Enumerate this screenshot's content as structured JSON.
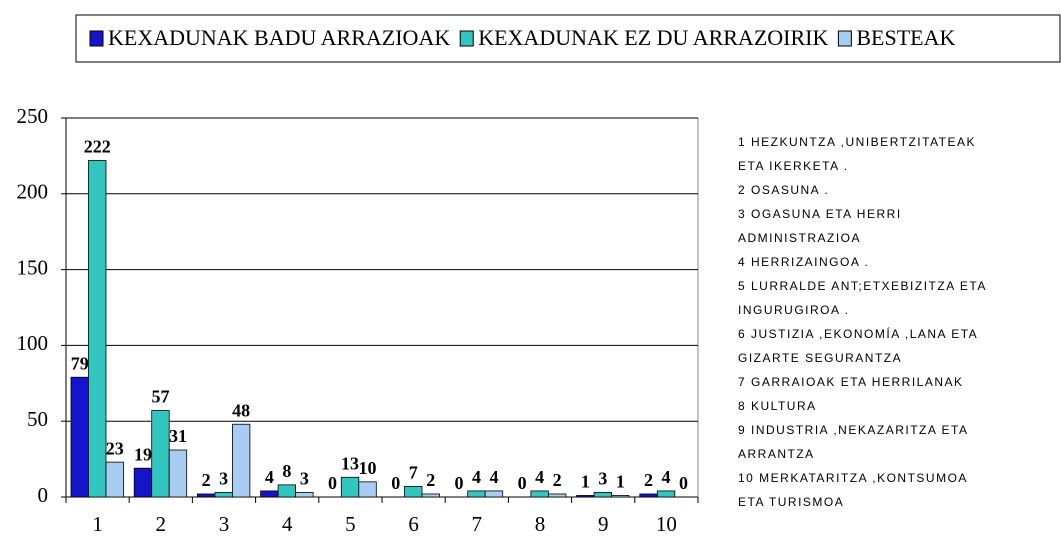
{
  "chart_data": {
    "type": "bar",
    "categories": [
      "1",
      "2",
      "3",
      "4",
      "5",
      "6",
      "7",
      "8",
      "9",
      "10"
    ],
    "series": [
      {
        "name": "KEXADUNAK BADU ARRAZIOAK",
        "color": "#1414c8",
        "values": [
          79,
          19,
          2,
          4,
          0,
          0,
          0,
          0,
          1,
          2
        ]
      },
      {
        "name": "KEXADUNAK EZ DU ARRAZOIRIK",
        "color": "#33c6c0",
        "values": [
          222,
          57,
          3,
          8,
          13,
          7,
          4,
          4,
          3,
          4
        ]
      },
      {
        "name": "BESTEAK",
        "color": "#a8ccf2",
        "values": [
          23,
          31,
          48,
          3,
          10,
          2,
          4,
          2,
          1,
          0
        ]
      }
    ],
    "ylim": [
      0,
      250
    ],
    "yticks": [
      0,
      50,
      100,
      150,
      200,
      250
    ],
    "grid": true,
    "legend": "top",
    "notes": [
      "1  HEZKUNTZA ,UNIBERTZITATEAK",
      "ETA IKERKETA .",
      "2 OSASUNA .",
      "3 OGASUNA ETA HERRI",
      "ADMINISTRAZIOA",
      "4 HERRIZAINGOA .",
      "5 LURRALDE ANT;ETXEBIZITZA ETA",
      "INGURUGIROA .",
      "6 JUSTIZIA ,EKONOMÍA ,LANA ETA",
      "GIZARTE SEGURANTZA",
      "7 GARRAIOAK ETA HERRILANAK",
      "8 KULTURA",
      "9 INDUSTRIA ,NEKAZARITZA ETA",
      "ARRANTZA",
      "10 MERKATARITZA ,KONTSUMOA",
      "ETA TURISMOA"
    ]
  }
}
